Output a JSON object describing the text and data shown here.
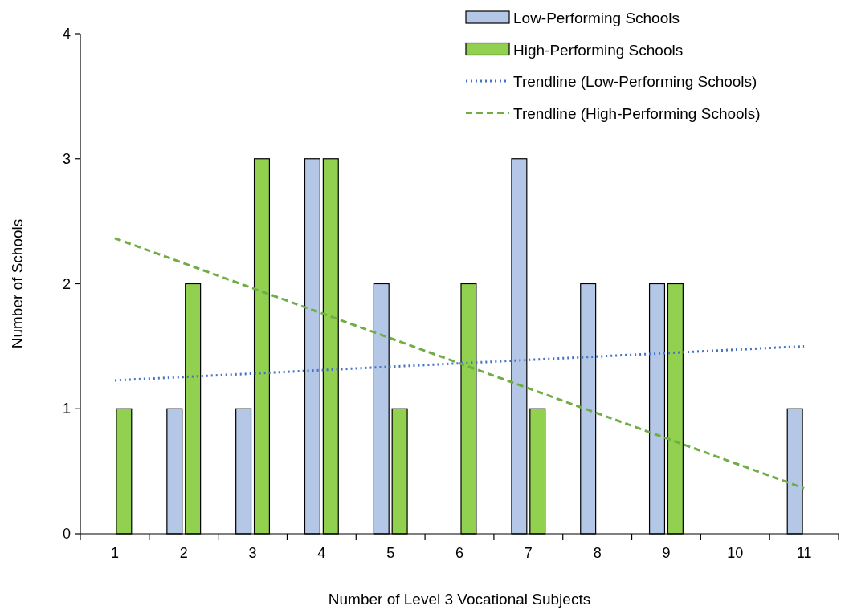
{
  "chart_data": {
    "type": "bar",
    "xlabel": "Number of Level 3 Vocational Subjects",
    "ylabel": "Number of  Schools",
    "categories": [
      "1",
      "2",
      "3",
      "4",
      "5",
      "6",
      "7",
      "8",
      "9",
      "10",
      "11"
    ],
    "series": [
      {
        "name": "Low-Performing Schools",
        "color": "#b4c7e7",
        "values": [
          0,
          1,
          1,
          3,
          2,
          0,
          3,
          2,
          2,
          0,
          1
        ]
      },
      {
        "name": "High-Performing Schools",
        "color": "#92d050",
        "values": [
          1,
          2,
          3,
          3,
          1,
          2,
          1,
          0,
          2,
          0,
          0
        ]
      },
      {
        "name": "Trendline (Low-Performing Schools)",
        "type": "line",
        "color": "#4472c4",
        "line_style": "dotted",
        "x": [
          "1",
          "11"
        ],
        "values": [
          1.227,
          1.5
        ]
      },
      {
        "name": "Trendline (High-Performing Schools)",
        "type": "line",
        "color": "#70ad47",
        "line_style": "dashed",
        "x": [
          "1",
          "11"
        ],
        "values": [
          2.364,
          0.364
        ]
      }
    ],
    "ylim": [
      0,
      4
    ],
    "yticks": [
      0,
      1,
      2,
      3,
      4
    ],
    "grid": false,
    "legend": "top right"
  }
}
